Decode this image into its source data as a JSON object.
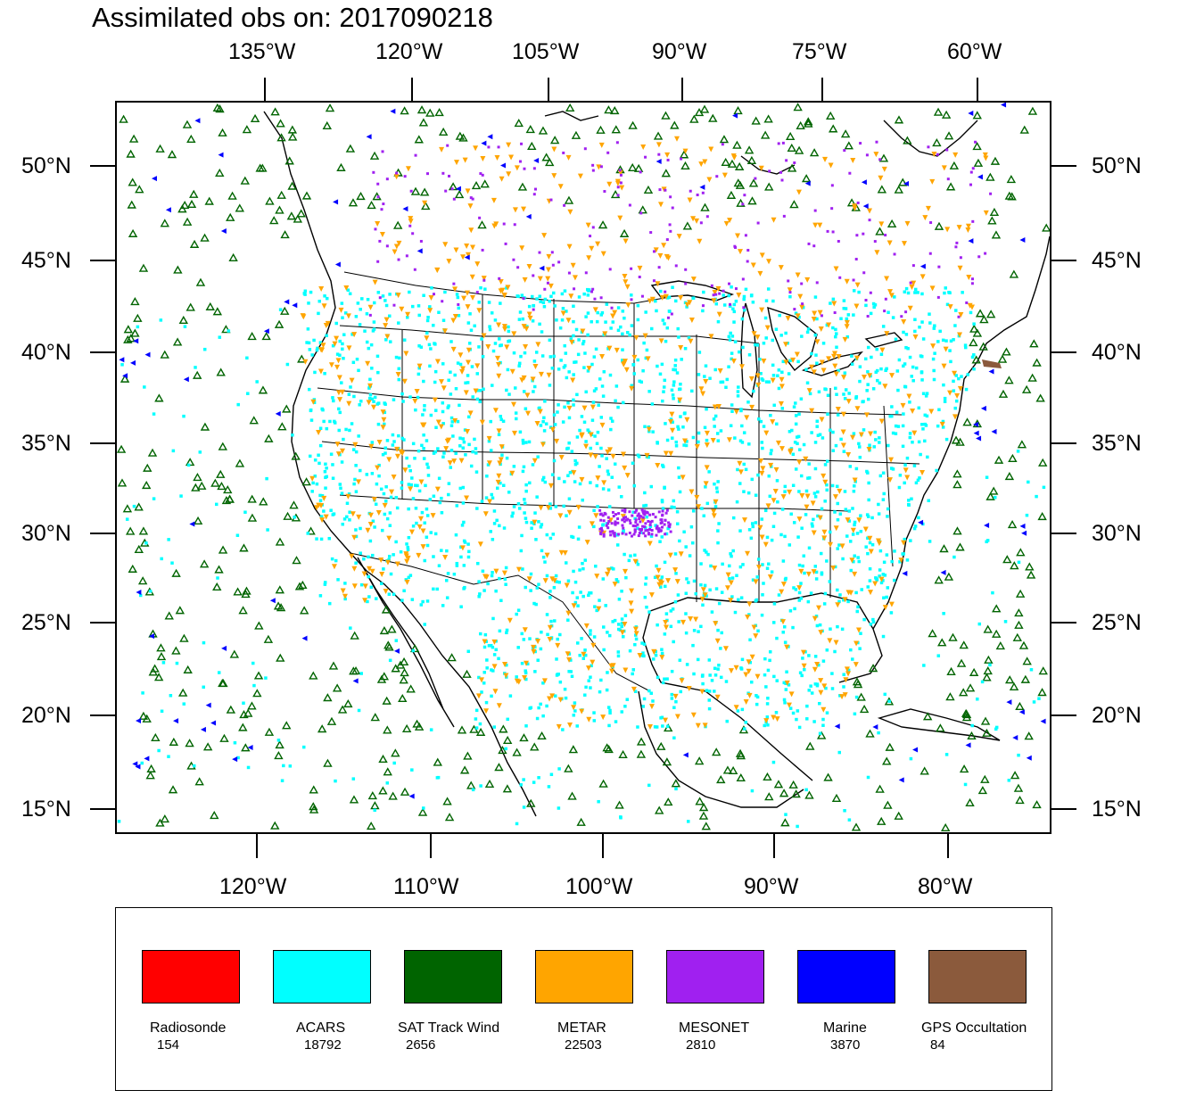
{
  "title": "Assimilated obs on: 2017090218",
  "top_lon_labels": [
    "135°W",
    "120°W",
    "105°W",
    "90°W",
    "75°W",
    "60°W"
  ],
  "bottom_lon_labels": [
    "120°W",
    "110°W",
    "100°W",
    "90°W",
    "80°W"
  ],
  "lat_labels": [
    "50°N",
    "45°N",
    "40°N",
    "35°N",
    "30°N",
    "25°N",
    "20°N",
    "15°N"
  ],
  "colors": {
    "radiosonde": "#ff0000",
    "acars": "#00ffff",
    "sat_track_wind": "#006400",
    "metar": "#ffa500",
    "mesonet": "#a020f0",
    "marine": "#0000ff",
    "gps_occultation": "#8b5a3c"
  },
  "legend": [
    {
      "name": "Radiosonde",
      "count": "154",
      "color": "#ff0000"
    },
    {
      "name": "ACARS",
      "count": "18792",
      "color": "#00ffff"
    },
    {
      "name": "SAT Track Wind",
      "count": "2656",
      "color": "#006400"
    },
    {
      "name": "METAR",
      "count": "22503",
      "color": "#ffa500"
    },
    {
      "name": "MESONET",
      "count": "2810",
      "color": "#a020f0"
    },
    {
      "name": "Marine",
      "count": "3870",
      "color": "#0000ff"
    },
    {
      "name": "GPS Occultation",
      "count": "84",
      "color": "#8b5a3c"
    }
  ]
}
